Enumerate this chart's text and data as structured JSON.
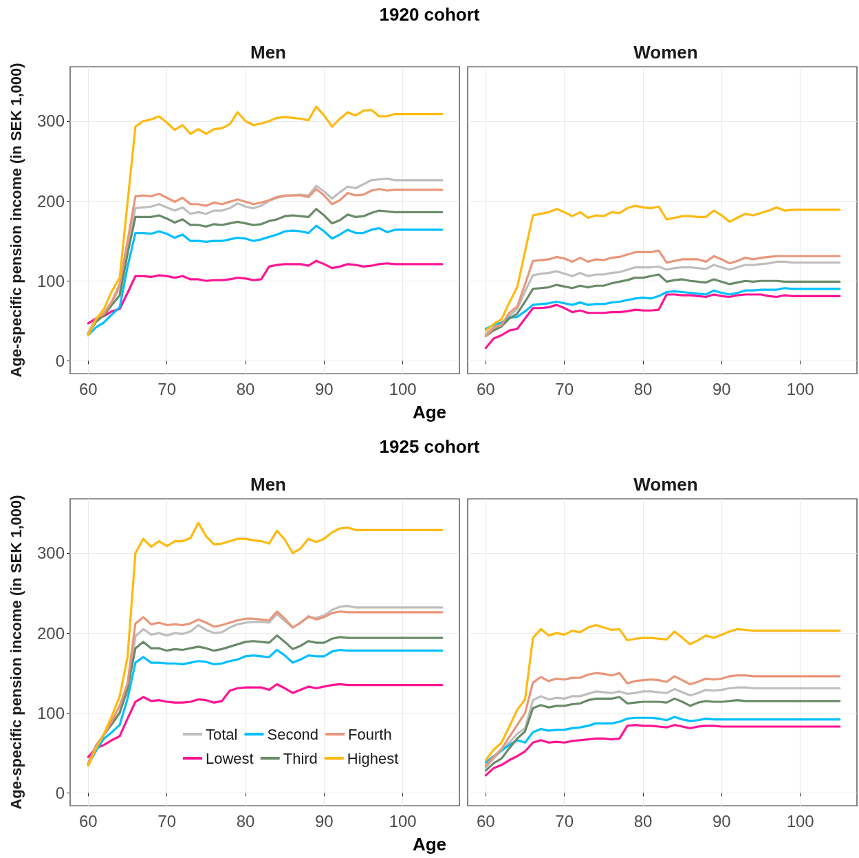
{
  "chart_data": [
    {
      "type": "line",
      "title": "Men",
      "annotations": [
        "1920 cohort"
      ],
      "xlabel": "Age",
      "ylabel": "Age-specific pension income (in SEK 1,000)",
      "xlim": [
        57.7,
        107.2
      ],
      "ylim": [
        -16,
        368
      ],
      "xticks": [
        60,
        70,
        80,
        90,
        100
      ],
      "yticks": [
        0,
        100,
        200,
        300
      ],
      "grid": true,
      "legend": false,
      "x": [
        60,
        61,
        62,
        63,
        64,
        65,
        66,
        67,
        68,
        69,
        70,
        71,
        72,
        73,
        74,
        75,
        76,
        77,
        78,
        79,
        80,
        81,
        82,
        83,
        84,
        85,
        86,
        87,
        88,
        89,
        90,
        91,
        92,
        93,
        94,
        95,
        96,
        97,
        98,
        99,
        105
      ],
      "series": [
        {
          "color": "#bebebe",
          "values": [
            35,
            53,
            60,
            74,
            90,
            143,
            191,
            192,
            193,
            196,
            192,
            188,
            192,
            184,
            186,
            184,
            188,
            188,
            191,
            197,
            193,
            191,
            194,
            200,
            204,
            206,
            207,
            208,
            207,
            219,
            212,
            203,
            211,
            218,
            216,
            221,
            226,
            227,
            228,
            226,
            226
          ]
        },
        {
          "color": "#ff1493",
          "values": [
            47,
            53,
            56,
            62,
            65,
            85,
            106,
            106,
            105,
            107,
            106,
            104,
            106,
            102,
            102,
            100,
            101,
            101,
            102,
            104,
            103,
            101,
            102,
            118,
            120,
            121,
            121,
            121,
            119,
            125,
            121,
            116,
            118,
            121,
            120,
            118,
            119,
            121,
            122,
            121,
            121
          ]
        },
        {
          "color": "#00bfff",
          "values": [
            32,
            42,
            48,
            58,
            67,
            118,
            160,
            160,
            159,
            162,
            159,
            154,
            158,
            150,
            150,
            149,
            150,
            150,
            152,
            154,
            153,
            150,
            152,
            155,
            158,
            162,
            163,
            162,
            160,
            169,
            162,
            153,
            158,
            164,
            160,
            160,
            164,
            166,
            161,
            164,
            164
          ]
        },
        {
          "color": "#698b69",
          "values": [
            34,
            49,
            57,
            70,
            82,
            134,
            180,
            180,
            180,
            182,
            178,
            173,
            177,
            170,
            170,
            168,
            171,
            170,
            172,
            174,
            172,
            170,
            171,
            175,
            177,
            181,
            182,
            181,
            180,
            190,
            182,
            172,
            176,
            183,
            180,
            181,
            185,
            188,
            187,
            186,
            186
          ]
        },
        {
          "color": "#e9967a",
          "values": [
            34,
            53,
            59,
            74,
            96,
            150,
            206,
            207,
            206,
            209,
            204,
            199,
            204,
            196,
            196,
            194,
            198,
            196,
            199,
            202,
            199,
            196,
            198,
            201,
            205,
            207,
            207,
            207,
            205,
            215,
            207,
            196,
            201,
            210,
            207,
            208,
            213,
            215,
            213,
            214,
            214
          ]
        },
        {
          "color": "#ffb90f",
          "values": [
            32,
            52,
            65,
            87,
            104,
            198,
            293,
            300,
            302,
            306,
            298,
            289,
            295,
            284,
            290,
            284,
            290,
            291,
            296,
            311,
            300,
            295,
            297,
            300,
            304,
            305,
            304,
            303,
            301,
            318,
            307,
            293,
            303,
            311,
            307,
            313,
            314,
            306,
            306,
            309,
            309
          ]
        }
      ]
    },
    {
      "type": "line",
      "title": "Women",
      "xlim": [
        57.7,
        107.2
      ],
      "ylim": [
        -16,
        368
      ],
      "xticks": [
        60,
        70,
        80,
        90,
        100
      ],
      "yticks": [
        0,
        100,
        200,
        300
      ],
      "grid": true,
      "legend": false,
      "tick_labels": "x",
      "x": [
        60,
        61,
        62,
        63,
        64,
        65,
        66,
        67,
        68,
        69,
        70,
        71,
        72,
        73,
        74,
        75,
        76,
        77,
        78,
        79,
        80,
        81,
        82,
        83,
        84,
        85,
        86,
        87,
        88,
        89,
        90,
        91,
        92,
        93,
        94,
        95,
        96,
        97,
        98,
        99,
        105
      ],
      "series": [
        {
          "color": "#bebebe",
          "values": [
            34,
            42,
            45,
            56,
            65,
            87,
            107,
            109,
            110,
            112,
            109,
            106,
            110,
            106,
            108,
            108,
            110,
            111,
            114,
            117,
            117,
            117,
            118,
            114,
            116,
            117,
            117,
            116,
            115,
            120,
            117,
            114,
            117,
            120,
            120,
            121,
            122,
            124,
            124,
            123,
            123
          ]
        },
        {
          "color": "#ff1493",
          "values": [
            16,
            28,
            32,
            38,
            40,
            53,
            66,
            66,
            67,
            70,
            66,
            61,
            63,
            60,
            60,
            60,
            61,
            61,
            62,
            64,
            63,
            63,
            64,
            83,
            83,
            82,
            82,
            81,
            80,
            83,
            81,
            80,
            82,
            83,
            83,
            83,
            81,
            80,
            82,
            81,
            81
          ]
        },
        {
          "color": "#00bfff",
          "values": [
            40,
            45,
            48,
            54,
            55,
            62,
            70,
            71,
            72,
            74,
            72,
            70,
            73,
            70,
            71,
            71,
            73,
            74,
            76,
            78,
            79,
            78,
            81,
            86,
            87,
            86,
            85,
            84,
            83,
            88,
            85,
            83,
            85,
            88,
            88,
            89,
            89,
            89,
            91,
            90,
            90
          ]
        },
        {
          "color": "#698b69",
          "values": [
            31,
            38,
            43,
            53,
            59,
            74,
            90,
            91,
            92,
            95,
            93,
            91,
            94,
            92,
            94,
            94,
            97,
            99,
            101,
            104,
            104,
            106,
            108,
            99,
            101,
            102,
            100,
            99,
            98,
            102,
            99,
            96,
            98,
            100,
            99,
            100,
            100,
            100,
            99,
            99,
            99
          ]
        },
        {
          "color": "#e9967a",
          "values": [
            31,
            41,
            45,
            60,
            68,
            96,
            125,
            126,
            127,
            130,
            128,
            124,
            129,
            124,
            127,
            126,
            129,
            130,
            133,
            136,
            136,
            136,
            138,
            123,
            125,
            127,
            127,
            127,
            124,
            131,
            127,
            122,
            125,
            129,
            127,
            129,
            130,
            131,
            131,
            131,
            131
          ]
        },
        {
          "color": "#ffb90f",
          "values": [
            38,
            46,
            52,
            73,
            92,
            137,
            182,
            184,
            186,
            190,
            186,
            181,
            186,
            179,
            182,
            181,
            186,
            185,
            191,
            194,
            192,
            191,
            193,
            177,
            179,
            181,
            181,
            180,
            180,
            188,
            182,
            174,
            179,
            184,
            182,
            185,
            188,
            192,
            188,
            189,
            189
          ]
        }
      ]
    },
    {
      "type": "line",
      "title": "Men",
      "annotations": [
        "1925 cohort"
      ],
      "xlabel": "Age",
      "ylabel": "Age-specific pension income (in SEK 1,000)",
      "xlim": [
        57.7,
        107.2
      ],
      "ylim": [
        -16,
        368
      ],
      "xticks": [
        60,
        70,
        80,
        90,
        100
      ],
      "yticks": [
        0,
        100,
        200,
        300
      ],
      "grid": true,
      "legend": "bottom right",
      "x": [
        60,
        61,
        62,
        63,
        64,
        65,
        66,
        67,
        68,
        69,
        70,
        71,
        72,
        73,
        74,
        75,
        76,
        77,
        78,
        79,
        80,
        81,
        82,
        83,
        84,
        85,
        86,
        87,
        88,
        89,
        90,
        91,
        92,
        93,
        94,
        95,
        96,
        97,
        98,
        99,
        105
      ],
      "series": [
        {
          "name": "Total",
          "color": "#bebebe",
          "values": [
            37,
            60,
            73,
            87,
            101,
            128,
            196,
            205,
            198,
            200,
            197,
            200,
            199,
            202,
            210,
            204,
            200,
            201,
            207,
            211,
            213,
            214,
            214,
            213,
            224,
            215,
            207,
            213,
            220,
            219,
            222,
            229,
            233,
            234,
            232,
            232,
            232,
            232,
            232,
            232,
            232
          ]
        },
        {
          "name": "Lowest",
          "color": "#ff1493",
          "values": [
            45,
            56,
            60,
            66,
            71,
            93,
            114,
            120,
            115,
            116,
            114,
            113,
            113,
            114,
            117,
            116,
            113,
            115,
            128,
            131,
            132,
            132,
            132,
            129,
            136,
            131,
            125,
            129,
            133,
            131,
            133,
            135,
            136,
            135,
            135,
            135,
            135,
            135,
            135,
            135,
            135
          ]
        },
        {
          "name": "Second",
          "color": "#00bfff",
          "values": [
            35,
            53,
            68,
            76,
            85,
            118,
            163,
            170,
            163,
            163,
            162,
            162,
            161,
            163,
            165,
            164,
            161,
            162,
            165,
            167,
            171,
            172,
            171,
            170,
            179,
            172,
            163,
            167,
            172,
            171,
            171,
            177,
            179,
            178,
            178,
            178,
            178,
            178,
            178,
            178,
            178
          ]
        },
        {
          "name": "Third",
          "color": "#698b69",
          "values": [
            37,
            57,
            73,
            86,
            100,
            131,
            181,
            189,
            181,
            181,
            178,
            180,
            179,
            181,
            183,
            181,
            178,
            180,
            183,
            186,
            189,
            190,
            189,
            188,
            197,
            189,
            180,
            184,
            190,
            188,
            188,
            193,
            195,
            194,
            194,
            194,
            194,
            194,
            194,
            194,
            194
          ]
        },
        {
          "name": "Fourth",
          "color": "#e9967a",
          "values": [
            37,
            59,
            73,
            90,
            109,
            137,
            212,
            220,
            211,
            213,
            210,
            211,
            210,
            212,
            217,
            213,
            208,
            210,
            213,
            216,
            218,
            218,
            217,
            216,
            227,
            218,
            207,
            213,
            221,
            217,
            220,
            225,
            227,
            226,
            226,
            226,
            226,
            226,
            226,
            226,
            226
          ]
        },
        {
          "name": "Highest",
          "color": "#ffb90f",
          "values": [
            34,
            56,
            74,
            96,
            121,
            170,
            300,
            318,
            308,
            315,
            309,
            315,
            315,
            319,
            338,
            321,
            311,
            312,
            315,
            318,
            318,
            316,
            315,
            312,
            328,
            317,
            300,
            306,
            318,
            314,
            318,
            326,
            331,
            332,
            329,
            329,
            329,
            329,
            329,
            329,
            329
          ]
        }
      ]
    },
    {
      "type": "line",
      "title": "Women",
      "xlim": [
        57.7,
        107.2
      ],
      "ylim": [
        -16,
        368
      ],
      "xticks": [
        60,
        70,
        80,
        90,
        100
      ],
      "yticks": [
        0,
        100,
        200,
        300
      ],
      "grid": true,
      "legend": false,
      "tick_labels": "x",
      "x": [
        60,
        61,
        62,
        63,
        64,
        65,
        66,
        67,
        68,
        69,
        70,
        71,
        72,
        73,
        74,
        75,
        76,
        77,
        78,
        79,
        80,
        81,
        82,
        83,
        84,
        85,
        86,
        87,
        88,
        89,
        90,
        91,
        92,
        93,
        94,
        95,
        96,
        97,
        98,
        99,
        105
      ],
      "series": [
        {
          "color": "#bebebe",
          "values": [
            32,
            43,
            53,
            63,
            74,
            81,
            116,
            121,
            117,
            119,
            118,
            121,
            121,
            124,
            127,
            126,
            125,
            127,
            124,
            125,
            127,
            127,
            126,
            125,
            130,
            126,
            122,
            125,
            129,
            128,
            129,
            131,
            132,
            132,
            131,
            131,
            131,
            131,
            131,
            131,
            131
          ]
        },
        {
          "color": "#ff1493",
          "values": [
            22,
            31,
            35,
            41,
            46,
            52,
            63,
            66,
            63,
            64,
            63,
            65,
            66,
            67,
            68,
            68,
            67,
            68,
            84,
            85,
            84,
            84,
            83,
            82,
            85,
            83,
            81,
            83,
            84,
            84,
            83,
            83,
            83,
            83,
            83,
            83,
            83,
            83,
            83,
            83,
            83
          ]
        },
        {
          "color": "#00bfff",
          "values": [
            38,
            46,
            53,
            60,
            66,
            63,
            76,
            80,
            78,
            79,
            79,
            81,
            82,
            84,
            87,
            87,
            87,
            89,
            93,
            94,
            94,
            94,
            93,
            91,
            95,
            92,
            90,
            91,
            93,
            92,
            92,
            92,
            92,
            92,
            92,
            92,
            92,
            92,
            92,
            92,
            92
          ]
        },
        {
          "color": "#698b69",
          "values": [
            28,
            37,
            43,
            56,
            68,
            77,
            106,
            110,
            107,
            109,
            109,
            111,
            112,
            116,
            118,
            118,
            118,
            120,
            112,
            113,
            114,
            114,
            114,
            113,
            118,
            114,
            109,
            113,
            115,
            114,
            114,
            115,
            116,
            115,
            115,
            115,
            115,
            115,
            115,
            115,
            115
          ]
        },
        {
          "color": "#e9967a",
          "values": [
            34,
            45,
            55,
            70,
            85,
            100,
            138,
            145,
            140,
            143,
            142,
            144,
            144,
            148,
            150,
            149,
            147,
            150,
            137,
            140,
            141,
            142,
            141,
            139,
            146,
            141,
            136,
            139,
            143,
            142,
            143,
            146,
            147,
            147,
            146,
            146,
            146,
            146,
            146,
            146,
            146
          ]
        },
        {
          "color": "#ffb90f",
          "values": [
            41,
            54,
            63,
            83,
            104,
            117,
            194,
            205,
            197,
            200,
            198,
            203,
            201,
            207,
            210,
            207,
            204,
            205,
            191,
            193,
            194,
            194,
            193,
            192,
            202,
            194,
            186,
            191,
            197,
            194,
            198,
            202,
            205,
            204,
            203,
            203,
            203,
            203,
            203,
            203,
            203
          ]
        }
      ]
    }
  ]
}
